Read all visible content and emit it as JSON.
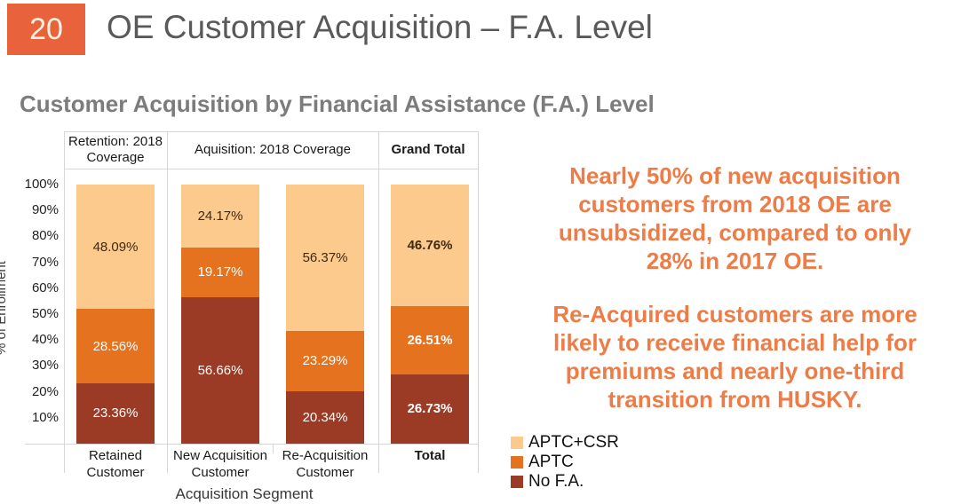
{
  "slide": {
    "page_number": "20",
    "title": "OE Customer Acquisition – F.A. Level",
    "subtitle": "Customer Acquisition by Financial Assistance (F.A.) Level"
  },
  "chart_data": {
    "type": "bar",
    "stacked": true,
    "xlabel": "Acquisition Segment",
    "ylabel": "% of Enrollment",
    "ylim": [
      0,
      100
    ],
    "ytick_labels": [
      "100%",
      "90%",
      "80%",
      "70%",
      "60%",
      "50%",
      "40%",
      "30%",
      "20%",
      "10%"
    ],
    "grid": false,
    "legend_position": "bottom-right",
    "group_headers": [
      {
        "lines": [
          "Retention: 2018",
          "Coverage"
        ],
        "bold": false
      },
      {
        "lines": [
          "Aquisition: 2018 Coverage"
        ],
        "bold": false
      },
      {
        "lines": [
          "Grand Total"
        ],
        "bold": true
      }
    ],
    "categories": [
      {
        "label": "Retained Customer",
        "lines": [
          "Retained",
          "Customer"
        ],
        "bold": false
      },
      {
        "label": "New Acquisition Customer",
        "lines": [
          "New Acquisition",
          "Customer"
        ],
        "bold": false
      },
      {
        "label": "Re-Acquisition Customer",
        "lines": [
          "Re-Acquisition",
          "Customer"
        ],
        "bold": false
      },
      {
        "label": "Total",
        "lines": [
          "Total"
        ],
        "bold": true
      }
    ],
    "series": [
      {
        "name": "APTC+CSR",
        "color": "#FBCA8C",
        "label_color": "#42290F",
        "values": [
          48.09,
          24.17,
          56.37,
          46.76
        ]
      },
      {
        "name": "APTC",
        "color": "#E4721F",
        "label_color": "#FFFFFF",
        "values": [
          28.56,
          19.17,
          23.29,
          26.51
        ]
      },
      {
        "name": "No F.A.",
        "color": "#9B3B26",
        "label_color": "#FFFFFF",
        "values": [
          23.36,
          56.66,
          20.34,
          26.73
        ]
      }
    ]
  },
  "insights": {
    "paragraph1_lines": [
      "Nearly 50% of new acquisition",
      "customers from 2018 OE are",
      "unsubsidized, compared to only",
      "28% in 2017 OE."
    ],
    "paragraph2_lines": [
      "Re-Acquired customers are more",
      "likely to receive financial help for",
      "premiums and nearly one-third",
      "transition from HUSKY."
    ]
  },
  "colors": {
    "badge_background": "#E8623C",
    "title_text": "#595959",
    "subtitle_text": "#7C7C7C",
    "insight_text": "#ED7C47",
    "chart_border": "#D6D6D6"
  }
}
